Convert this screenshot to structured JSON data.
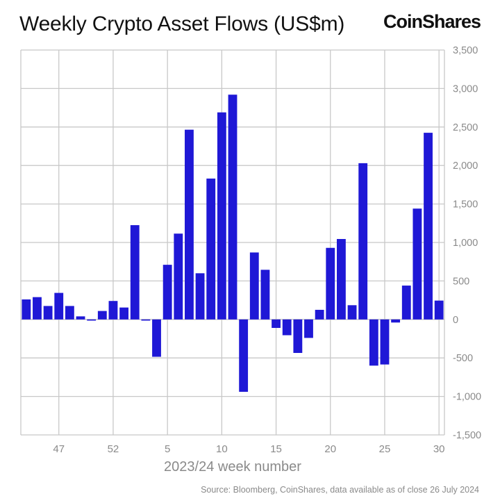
{
  "header": {
    "title": "Weekly Crypto Asset Flows (US$m)",
    "brand": "CoinShares"
  },
  "footer": {
    "source": "Source: Bloomberg, CoinShares, data available as of close 26 July 2024"
  },
  "colors": {
    "bar": "#1f18d6",
    "grid": "#c8c8c8",
    "tick_text": "#8a8a8a"
  },
  "chart_data": {
    "type": "bar",
    "title": "Weekly Crypto Asset Flows (US$m)",
    "xlabel": "2023/24 week number",
    "ylabel": "",
    "ylim": [
      -1500,
      3500
    ],
    "y_axis_side": "right",
    "y_ticks": [
      "3,500",
      "3,000",
      "2,500",
      "2,000",
      "1,500",
      "1,000",
      "500",
      "0",
      "-500",
      "-1,000",
      "-1,500"
    ],
    "y_tick_values": [
      3500,
      3000,
      2500,
      2000,
      1500,
      1000,
      500,
      0,
      -500,
      -1000,
      -1500
    ],
    "x_tick_labels": [
      "47",
      "52",
      "5",
      "10",
      "15",
      "20",
      "25",
      "30"
    ],
    "x_tick_weeks": [
      "47",
      "52",
      "5",
      "10",
      "15",
      "20",
      "25",
      "30"
    ],
    "grid": true,
    "categories": [
      "44",
      "45",
      "46",
      "47",
      "48",
      "49",
      "50",
      "51",
      "52",
      "1",
      "2",
      "3",
      "4",
      "5",
      "6",
      "7",
      "8",
      "9",
      "10",
      "11",
      "12",
      "13",
      "14",
      "15",
      "16",
      "17",
      "18",
      "19",
      "20",
      "21",
      "22",
      "23",
      "24",
      "25",
      "26",
      "27",
      "28",
      "29",
      "30"
    ],
    "values": [
      260,
      290,
      175,
      345,
      175,
      40,
      -15,
      110,
      240,
      155,
      1225,
      -15,
      -485,
      710,
      1115,
      2465,
      600,
      1830,
      2690,
      2920,
      -940,
      870,
      645,
      -110,
      -205,
      -435,
      -240,
      125,
      930,
      1045,
      185,
      2030,
      -600,
      -585,
      -40,
      440,
      1440,
      2425,
      245
    ]
  }
}
